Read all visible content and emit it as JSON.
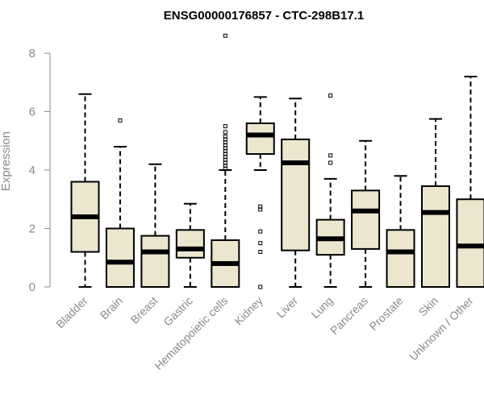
{
  "chart_data": {
    "type": "boxplot",
    "title": "ENSG00000176857 - CTC-298B17.1",
    "ylabel": "Expression",
    "xlabel": "",
    "ylim": [
      0,
      8
    ],
    "yticks": [
      "0",
      "2",
      "4",
      "6",
      "8"
    ],
    "box_fill": "#ede6cf",
    "line_color": "#000000",
    "axis_color": "#8a8a8a",
    "categories": [
      "Bladder",
      "Brain",
      "Breast",
      "Gastric",
      "Hematopoietic cells",
      "Kidney",
      "Liver",
      "Lung",
      "Pancreas",
      "Prostate",
      "Skin",
      "Unknown / Other"
    ],
    "boxes": [
      {
        "whisker_low": 0.0,
        "q1": 1.2,
        "median": 2.4,
        "q3": 3.6,
        "whisker_high": 6.6,
        "outliers": []
      },
      {
        "whisker_low": 0.0,
        "q1": 0.0,
        "median": 0.85,
        "q3": 2.0,
        "whisker_high": 4.8,
        "outliers": [
          5.7
        ]
      },
      {
        "whisker_low": 0.0,
        "q1": 0.0,
        "median": 1.2,
        "q3": 1.75,
        "whisker_high": 4.2,
        "outliers": []
      },
      {
        "whisker_low": 0.0,
        "q1": 1.0,
        "median": 1.3,
        "q3": 1.95,
        "whisker_high": 2.85,
        "outliers": []
      },
      {
        "whisker_low": 0.0,
        "q1": 0.0,
        "median": 0.8,
        "q3": 1.6,
        "whisker_high": 4.0,
        "outliers": [
          4.05,
          4.15,
          4.25,
          4.35,
          4.45,
          4.55,
          4.65,
          4.75,
          4.85,
          4.95,
          5.05,
          5.15,
          5.3,
          5.5,
          8.6
        ]
      },
      {
        "whisker_low": 4.0,
        "q1": 4.55,
        "median": 5.2,
        "q3": 5.6,
        "whisker_high": 6.5,
        "outliers": [
          0.0,
          1.2,
          1.5,
          1.9,
          2.65,
          2.75
        ]
      },
      {
        "whisker_low": 0.0,
        "q1": 1.25,
        "median": 4.25,
        "q3": 5.05,
        "whisker_high": 6.45,
        "outliers": []
      },
      {
        "whisker_low": 0.0,
        "q1": 1.1,
        "median": 1.65,
        "q3": 2.3,
        "whisker_high": 3.7,
        "outliers": [
          4.25,
          4.5,
          6.55
        ]
      },
      {
        "whisker_low": 0.0,
        "q1": 1.3,
        "median": 2.6,
        "q3": 3.3,
        "whisker_high": 5.0,
        "outliers": []
      },
      {
        "whisker_low": 0.0,
        "q1": 0.0,
        "median": 1.2,
        "q3": 1.95,
        "whisker_high": 3.8,
        "outliers": []
      },
      {
        "whisker_low": 0.0,
        "q1": 0.0,
        "median": 2.55,
        "q3": 3.45,
        "whisker_high": 5.75,
        "outliers": []
      },
      {
        "whisker_low": 0.0,
        "q1": 0.0,
        "median": 1.4,
        "q3": 3.0,
        "whisker_high": 7.2,
        "outliers": []
      }
    ]
  }
}
